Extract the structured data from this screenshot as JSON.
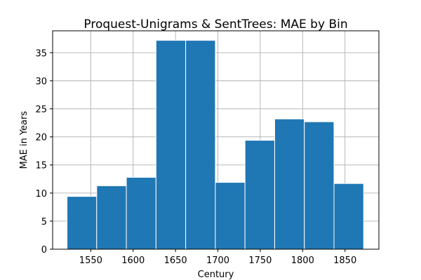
{
  "chart_data": {
    "type": "bar",
    "title": "Proquest-Unigrams & SentTrees: MAE by Bin",
    "xlabel": "Century",
    "ylabel": "MAE in Years",
    "xlim": [
      1505,
      1890
    ],
    "ylim": [
      0,
      38.9
    ],
    "grid": true,
    "bar_color": "#1f77b4",
    "xticks": [
      1550,
      1600,
      1650,
      1700,
      1750,
      1800,
      1850
    ],
    "yticks": [
      0,
      5,
      10,
      15,
      20,
      25,
      30,
      35
    ],
    "bins": [
      {
        "start": 1522,
        "end": 1557,
        "value": 9.4
      },
      {
        "start": 1557,
        "end": 1592,
        "value": 11.3
      },
      {
        "start": 1592,
        "end": 1627,
        "value": 12.8
      },
      {
        "start": 1627,
        "end": 1662,
        "value": 37.2
      },
      {
        "start": 1662,
        "end": 1697,
        "value": 37.2
      },
      {
        "start": 1697,
        "end": 1732,
        "value": 11.9
      },
      {
        "start": 1732,
        "end": 1767,
        "value": 19.4
      },
      {
        "start": 1767,
        "end": 1802,
        "value": 23.2
      },
      {
        "start": 1802,
        "end": 1837,
        "value": 22.7
      },
      {
        "start": 1837,
        "end": 1872,
        "value": 11.7
      }
    ]
  }
}
